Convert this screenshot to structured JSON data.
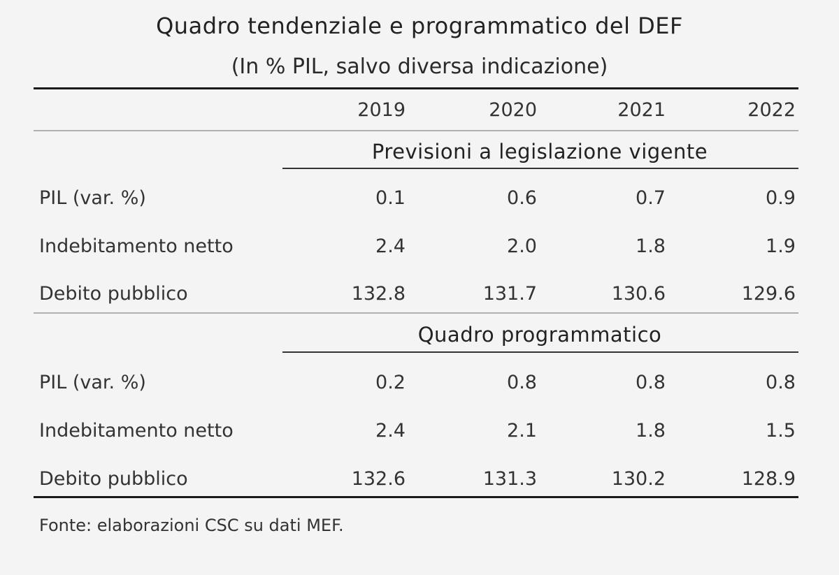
{
  "title": "Quadro tendenziale e programmatico del DEF",
  "subtitle": "(In % PIL, salvo diversa indicazione)",
  "columns": [
    "2019",
    "2020",
    "2021",
    "2022"
  ],
  "sections": [
    {
      "title": "Previsioni a legislazione vigente",
      "rows": [
        {
          "label": "PIL (var. %)",
          "values": [
            "0.1",
            "0.6",
            "0.7",
            "0.9"
          ]
        },
        {
          "label": "Indebitamento netto",
          "values": [
            "2.4",
            "2.0",
            "1.8",
            "1.9"
          ]
        },
        {
          "label": "Debito pubblico",
          "values": [
            "132.8",
            "131.7",
            "130.6",
            "129.6"
          ]
        }
      ]
    },
    {
      "title": "Quadro programmatico",
      "rows": [
        {
          "label": "PIL (var. %)",
          "values": [
            "0.2",
            "0.8",
            "0.8",
            "0.8"
          ]
        },
        {
          "label": "Indebitamento netto",
          "values": [
            "2.4",
            "2.1",
            "1.8",
            "1.5"
          ]
        },
        {
          "label": "Debito pubblico",
          "values": [
            "132.6",
            "131.3",
            "130.2",
            "128.9"
          ]
        }
      ]
    }
  ],
  "footer": "Fonte: elaborazioni CSC su dati MEF."
}
